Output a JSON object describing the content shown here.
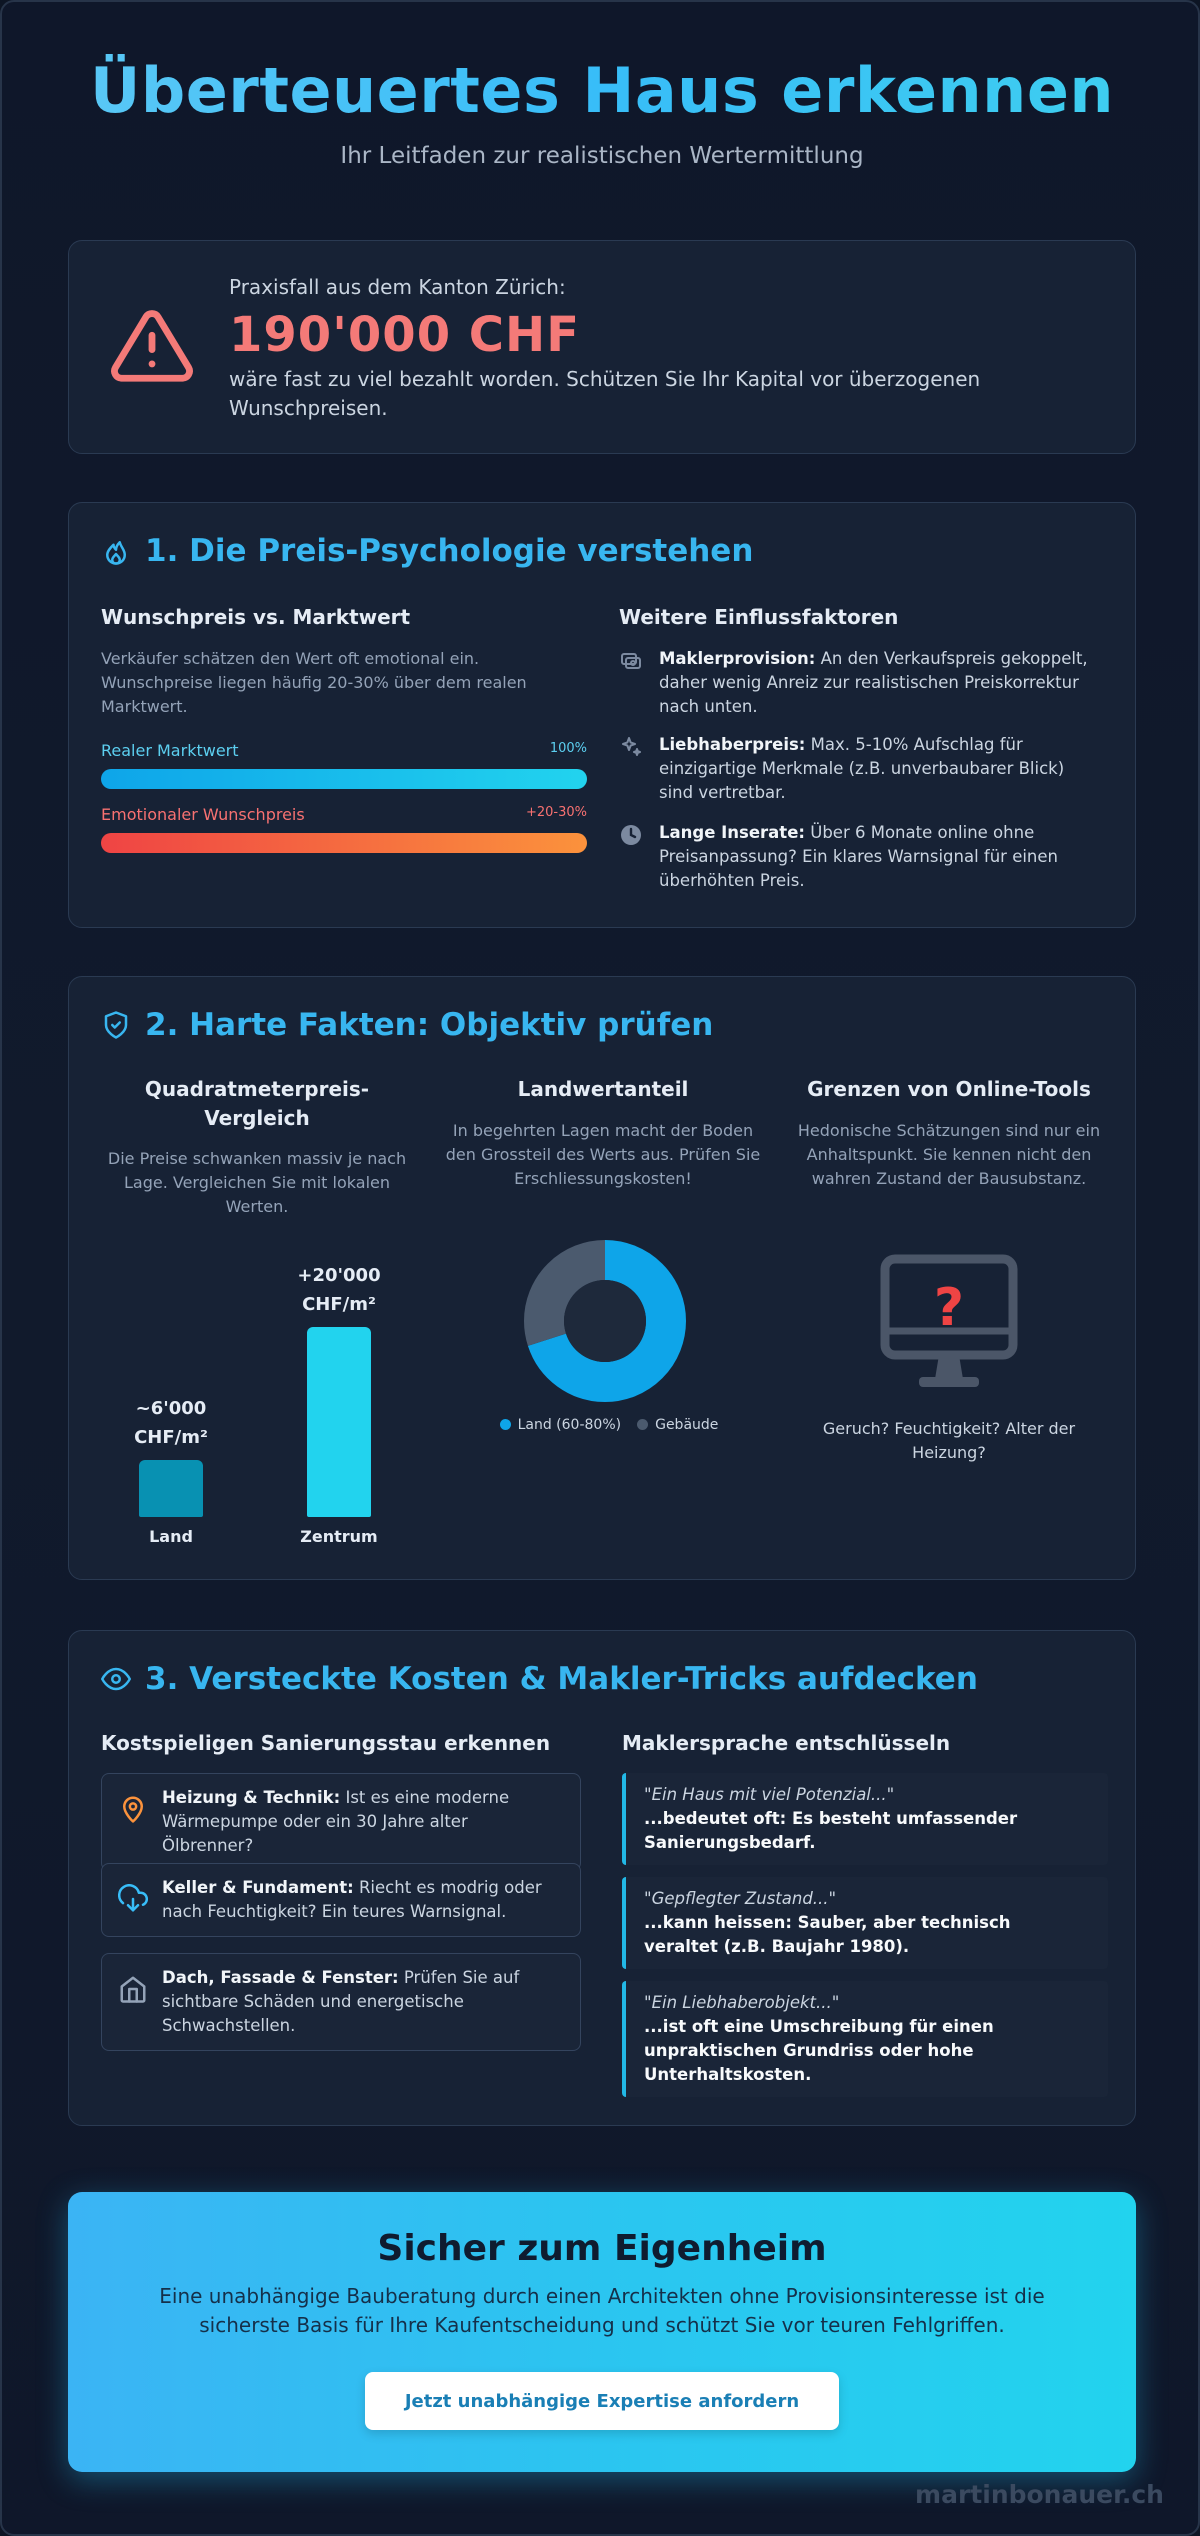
{
  "header": {
    "title": "Überteuertes Haus erkennen",
    "subtitle": "Ihr Leitfaden zur realistischen Wertermittlung"
  },
  "alert": {
    "icon": "warning-triangle-icon",
    "kicker": "Praxisfall aus dem Kanton Zürich:",
    "amount": "190'000 CHF",
    "text": "wäre fast zu viel bezahlt worden. Schützen Sie Ihr Kapital vor überzogenen Wunschpreisen.",
    "color": "#f47a78"
  },
  "section1": {
    "icon": "flame-icon",
    "title": "1. Die Preis-Psychologie verstehen",
    "left": {
      "heading": "Wunschpreis vs. Marktwert",
      "description": "Verkäufer schätzen den Wert oft emotional ein. Wunschpreise liegen häufig 20-30% über dem realen Marktwert.",
      "bars": [
        {
          "label": "Realer Marktwert",
          "value_text": "100%",
          "fill": 1.0,
          "color": "#38bdf8"
        },
        {
          "label": "Emotionaler Wunschpreis",
          "value_text": "+20-30%",
          "fill": 1.0,
          "color": "#f87171"
        }
      ]
    },
    "right": {
      "heading": "Weitere Einflussfaktoren",
      "items": [
        {
          "icon": "coins-icon",
          "bold": "Maklerprovision:",
          "text": " An den Verkaufspreis gekoppelt, daher wenig Anreiz zur realistischen Preiskorrektur nach unten."
        },
        {
          "icon": "sparkle-icon",
          "bold": "Liebhaberpreis:",
          "text": " Max. 5-10% Aufschlag für einzigartige Merkmale (z.B. unverbaubarer Blick) sind vertretbar."
        },
        {
          "icon": "clock-icon",
          "bold": "Lange Inserate:",
          "text": " Über 6 Monate online ohne Preisanpassung? Ein klares Warnsignal für einen überhöhten Preis."
        }
      ]
    }
  },
  "section2": {
    "icon": "shield-check-icon",
    "title": "2. Harte Fakten: Objektiv prüfen",
    "col1": {
      "heading": "Quadratmeterpreis-Vergleich",
      "description": "Die Preise schwanken massiv je nach Lage. Vergleichen Sie mit lokalen Werten."
    },
    "col2": {
      "heading": "Landwertanteil",
      "description": "In begehrten Lagen macht der Boden den Grossteil des Werts aus. Prüfen Sie Erschliessungskosten!"
    },
    "col3": {
      "heading": "Grenzen von Online-Tools",
      "description": "Hedonische Schätzungen sind nur ein Anhaltspunkt. Sie kennen nicht den wahren Zustand der Bausubstanz.",
      "icon": "monitor-question-icon",
      "caption": "Geruch? Feuchtigkeit? Alter der Heizung?"
    }
  },
  "chart_data": [
    {
      "type": "bar",
      "categories": [
        "Land",
        "Zentrum"
      ],
      "values": [
        6000,
        20000
      ],
      "data_labels": [
        "~6'000 CHF/m²",
        "+20'000 CHF/m²"
      ],
      "colors": [
        "#0891b2",
        "#22d3ee"
      ]
    },
    {
      "type": "pie",
      "labels": [
        "Land (60-80%)",
        "Gebäude"
      ],
      "values": [
        70,
        30
      ],
      "colors": [
        "#0ea5e9",
        "#4b5a6e"
      ]
    }
  ],
  "section3": {
    "icon": "eye-icon",
    "title": "3. Versteckte Kosten & Makler-Tricks aufdecken",
    "left": {
      "heading": "Kostspieligen Sanierungsstau erkennen",
      "items": [
        {
          "icon": "location-pin-icon",
          "bold": "Heizung & Technik:",
          "text": " Ist es eine moderne Wärmepumpe oder ein 30 Jahre alter Ölbrenner?"
        },
        {
          "icon": "cloud-download-icon",
          "bold": "Keller & Fundament:",
          "text": " Riecht es modrig oder nach Feuchtigkeit? Ein teures Warnsignal."
        },
        {
          "icon": "house-icon",
          "bold": "Dach, Fassade & Fenster:",
          "text": " Prüfen Sie auf sichtbare Schäden und energetische Schwachstellen."
        }
      ]
    },
    "right": {
      "heading": "Maklersprache entschlüsseln",
      "quotes": [
        {
          "quote": "\"Ein Haus mit viel Potenzial...\"",
          "meaning": "...bedeutet oft: Es besteht umfassender Sanierungsbedarf."
        },
        {
          "quote": "\"Gepflegter Zustand...\"",
          "meaning": "...kann heissen: Sauber, aber technisch veraltet (z.B. Baujahr 1980)."
        },
        {
          "quote": "\"Ein Liebhaberobjekt...\"",
          "meaning": "...ist oft eine Umschreibung für einen unpraktischen Grundriss oder hohe Unterhaltskosten."
        }
      ]
    }
  },
  "cta": {
    "title": "Sicher zum Eigenheim",
    "text": "Eine unabhängige Bauberatung durch einen Architekten ohne Provisionsinteresse ist die sicherste Basis für Ihre Kaufentscheidung und schützt Sie vor teuren Fehlgriffen.",
    "button": "Jetzt unabhängige Expertise anfordern"
  },
  "footer": "martinbonauer.ch"
}
